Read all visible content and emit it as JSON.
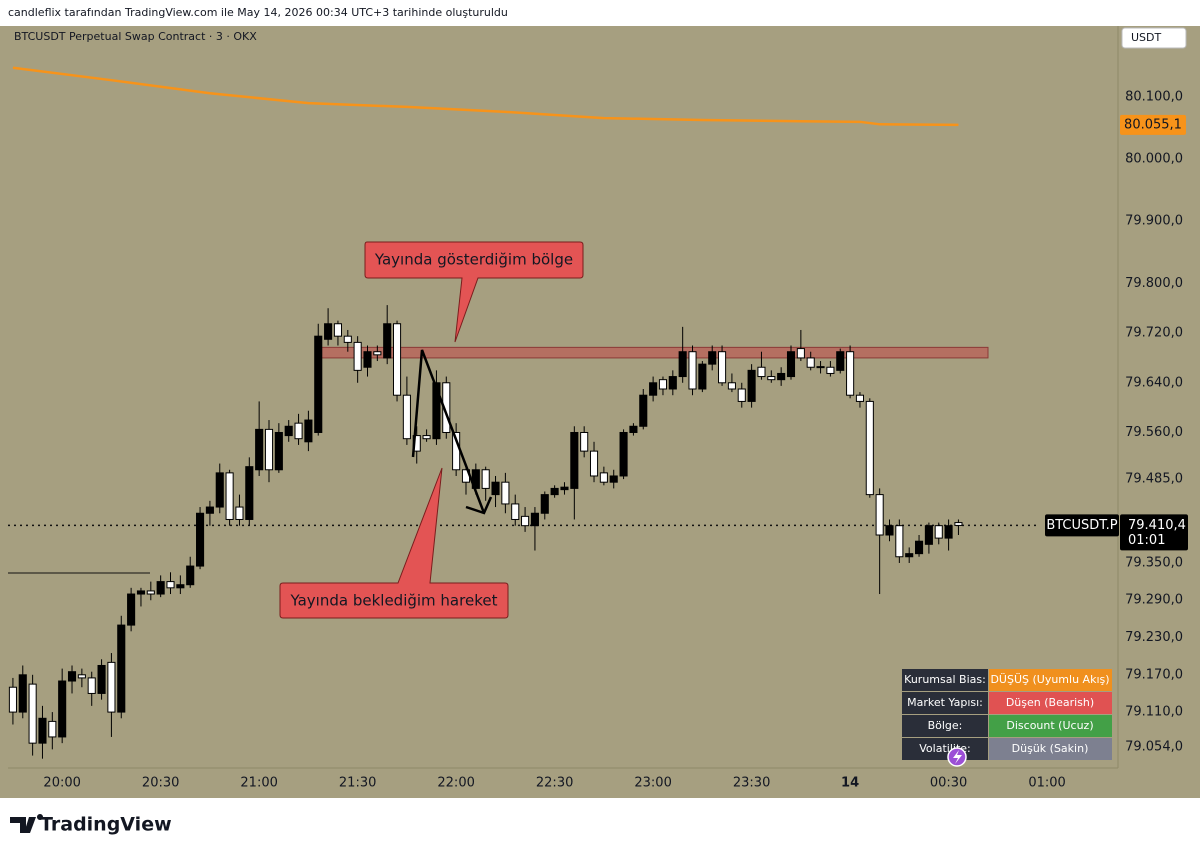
{
  "header": {
    "credit": "candleflix tarafından TradingView.com ile May 14, 2026 00:34 UTC+3 tarihinde oluşturuldu"
  },
  "chart_data": {
    "type": "candlestick",
    "title": "BTCUSDT Perpetual Swap Contract · 3 · OKX",
    "currency": "USDT",
    "up_color": "#000000",
    "down_color": "#ffffff",
    "open": [
      79150,
      79110,
      79155,
      79060,
      79095,
      79070,
      79160,
      79170,
      79165,
      79140,
      79190,
      79110,
      79250,
      79300,
      79305,
      79300,
      79320,
      79310,
      79315,
      79345,
      79430,
      79440,
      79495,
      79440,
      79420,
      79500,
      79565,
      79500,
      79555,
      79575,
      79545,
      79560,
      79710,
      79735,
      79715,
      79705,
      79665,
      79690,
      79680,
      79735,
      79620,
      79555,
      79555,
      79550,
      79640,
      79560,
      79500,
      79470,
      79500,
      79460,
      79480,
      79445,
      79425,
      79410,
      79430,
      79460,
      79468,
      79470,
      79560,
      79530,
      79495,
      79480,
      79490,
      79560,
      79570,
      79620,
      79645,
      79630,
      79650,
      79690,
      79630,
      79670,
      79690,
      79640,
      79630,
      79610,
      79665,
      79650,
      79645,
      79650,
      79695,
      79680,
      79665,
      79665,
      79660,
      79690,
      79620,
      79610,
      79460,
      79395,
      79410,
      79360,
      79365,
      79380,
      79410,
      79390,
      79415
    ],
    "high": [
      79165,
      79185,
      79170,
      79120,
      79110,
      79180,
      79185,
      79180,
      79175,
      79195,
      79205,
      79265,
      79310,
      79310,
      79320,
      79330,
      79335,
      79330,
      79360,
      79440,
      79450,
      79510,
      79500,
      79460,
      79520,
      79610,
      79580,
      79575,
      79580,
      79590,
      79595,
      79735,
      79760,
      79740,
      79725,
      79715,
      79700,
      79700,
      79765,
      79740,
      79650,
      79570,
      79565,
      79660,
      79650,
      79575,
      79510,
      79510,
      79505,
      79490,
      79495,
      79460,
      79440,
      79440,
      79465,
      79475,
      79480,
      79570,
      79570,
      79545,
      79505,
      79500,
      79565,
      79575,
      79630,
      79650,
      79650,
      79660,
      79730,
      79700,
      79675,
      79700,
      79700,
      79655,
      79640,
      79670,
      79690,
      79660,
      79665,
      79700,
      79725,
      79690,
      79675,
      79675,
      79695,
      79700,
      79625,
      79615,
      79470,
      79420,
      79420,
      79375,
      79395,
      79415,
      79415,
      79420,
      79420
    ],
    "low": [
      79090,
      79100,
      79040,
      79035,
      79050,
      79060,
      79140,
      79150,
      79120,
      79130,
      79070,
      79100,
      79240,
      79280,
      79290,
      79295,
      79300,
      79300,
      79310,
      79340,
      79410,
      79430,
      79410,
      79410,
      79410,
      79490,
      79480,
      79495,
      79545,
      79540,
      79530,
      79555,
      79700,
      79700,
      79690,
      79640,
      79650,
      79675,
      79670,
      79610,
      79540,
      79510,
      79545,
      79540,
      79550,
      79490,
      79460,
      79460,
      79450,
      79440,
      79430,
      79410,
      79400,
      79370,
      79420,
      79455,
      79460,
      79420,
      79520,
      79480,
      79475,
      79470,
      79485,
      79555,
      79565,
      79610,
      79620,
      79620,
      79640,
      79620,
      79625,
      79660,
      79635,
      79625,
      79600,
      79600,
      79645,
      79640,
      79635,
      79645,
      79675,
      79660,
      79655,
      79650,
      79655,
      79615,
      79600,
      79455,
      79300,
      79385,
      79350,
      79350,
      79360,
      79365,
      79380,
      79370,
      79395
    ],
    "close": [
      79110,
      79170,
      79060,
      79100,
      79070,
      79160,
      79175,
      79165,
      79140,
      79185,
      79110,
      79250,
      79300,
      79305,
      79300,
      79320,
      79310,
      79315,
      79345,
      79430,
      79440,
      79495,
      79420,
      79420,
      79505,
      79565,
      79500,
      79560,
      79570,
      79550,
      79580,
      79715,
      79735,
      79715,
      79705,
      79660,
      79690,
      79685,
      79735,
      79620,
      79550,
      79530,
      79550,
      79640,
      79560,
      79500,
      79480,
      79500,
      79470,
      79480,
      79445,
      79420,
      79410,
      79430,
      79460,
      79470,
      79472,
      79560,
      79530,
      79490,
      79480,
      79490,
      79560,
      79570,
      79620,
      79640,
      79630,
      79650,
      79690,
      79630,
      79670,
      79690,
      79640,
      79630,
      79610,
      79660,
      79650,
      79645,
      79655,
      79690,
      79680,
      79665,
      79666,
      79655,
      79690,
      79620,
      79610,
      79460,
      79395,
      79410,
      79360,
      79365,
      79385,
      79410,
      79390,
      79410,
      79410.4
    ],
    "ma": {
      "color": "#f7931a",
      "x": [
        0,
        10,
        20,
        30,
        40,
        50,
        60,
        70,
        80,
        86,
        88,
        96
      ],
      "values": [
        80147,
        80127,
        80106,
        80090,
        80084,
        80076,
        80066,
        80063,
        80061,
        80060,
        80056,
        80055.1
      ],
      "last": {
        "value": 80055.1,
        "label": "80.055,1"
      }
    },
    "current_price": {
      "value": 79410.4,
      "label": "79.410,4",
      "countdown": "01:01",
      "symbol": "BTCUSDT.P"
    },
    "zone": {
      "top": 79697,
      "bottom": 79680,
      "color": "#c0504d"
    },
    "xlim": [
      -0.5,
      112.2
    ],
    "ylim": [
      79020,
      80211
    ],
    "xticks": [
      {
        "value": 5,
        "label": "20:00"
      },
      {
        "value": 15,
        "label": "20:30"
      },
      {
        "value": 25,
        "label": "21:00"
      },
      {
        "value": 35,
        "label": "21:30"
      },
      {
        "value": 45,
        "label": "22:00"
      },
      {
        "value": 55,
        "label": "22:30"
      },
      {
        "value": 65,
        "label": "23:00"
      },
      {
        "value": 75,
        "label": "23:30"
      },
      {
        "value": 85,
        "label": "14"
      },
      {
        "value": 95,
        "label": "00:30"
      },
      {
        "value": 105,
        "label": "01:00"
      }
    ],
    "yticks": [
      {
        "value": 79054,
        "label": "79.054,0"
      },
      {
        "value": 79110,
        "label": "79.110,0"
      },
      {
        "value": 79170,
        "label": "79.170,0"
      },
      {
        "value": 79230,
        "label": "79.230,0"
      },
      {
        "value": 79290,
        "label": "79.290,0"
      },
      {
        "value": 79350,
        "label": "79.350,0"
      },
      {
        "value": 79485,
        "label": "79.485,0"
      },
      {
        "value": 79560,
        "label": "79.560,0"
      },
      {
        "value": 79640,
        "label": "79.640,0"
      },
      {
        "value": 79720,
        "label": "79.720,0"
      },
      {
        "value": 79800,
        "label": "79.800,0"
      },
      {
        "value": 79900,
        "label": "79.900,0"
      },
      {
        "value": 80000,
        "label": "80.000,0"
      },
      {
        "value": 80100,
        "label": "80.100,0"
      }
    ],
    "annotations": [
      "Yayında gösterdiğim bölge",
      "Yayında beklediğim hareket"
    ]
  },
  "table": {
    "rows": [
      [
        "Kurumsal Bias:",
        "DÜŞÜŞ (Uyumlu Akış)"
      ],
      [
        "Market Yapısı:",
        "Düşen (Bearish)"
      ],
      [
        "Bölge:",
        "Discount (Ucuz)"
      ],
      [
        "Volatilite:",
        "Düşük (Sakin)"
      ]
    ],
    "colors": [
      "#f0901e",
      "#e05252",
      "#43a047",
      "#7d8090"
    ]
  },
  "footer": {
    "logo": "TradingView"
  }
}
